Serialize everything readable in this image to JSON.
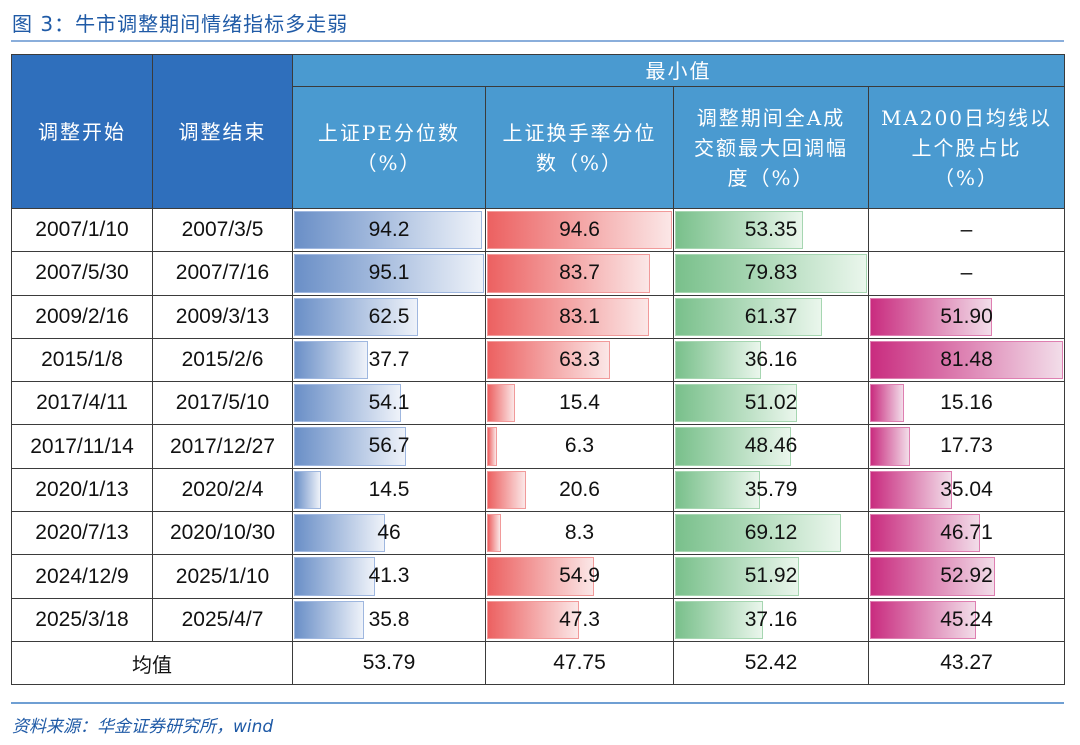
{
  "title": "图 3：牛市调整期间情绪指标多走弱",
  "source": "资料来源：华金证券研究所，wind",
  "header": {
    "group_label": "最小值",
    "col_start": "调整开始",
    "col_end": "调整结束",
    "col_pe_line1": "上证PE分位数",
    "col_pe_line2": "（%）",
    "col_turnover_line1": "上证换手率分位",
    "col_turnover_line2": "数（%）",
    "col_drawdown_line1": "调整期间全A成",
    "col_drawdown_line2": "交额最大回调幅",
    "col_drawdown_line3": "度（%）",
    "col_ma200_line1": "MA200日均线以",
    "col_ma200_line2": "上个股占比",
    "col_ma200_line3": "（%）"
  },
  "colors": {
    "header_dark": "#2f6fbc",
    "header_light": "#4a9ad0",
    "bar_pe": "#6a8fc7",
    "bar_turnover": "#ec6161",
    "bar_drawdown": "#79c08b",
    "bar_ma200": "#c92c7f",
    "title": "#1f5aa6"
  },
  "rows": [
    {
      "start": "2007/1/10",
      "end": "2007/3/5",
      "pe": "94.2",
      "turnover": "94.6",
      "drawdown": "53.35",
      "ma200": "–"
    },
    {
      "start": "2007/5/30",
      "end": "2007/7/16",
      "pe": "95.1",
      "turnover": "83.7",
      "drawdown": "79.83",
      "ma200": "–"
    },
    {
      "start": "2009/2/16",
      "end": "2009/3/13",
      "pe": "62.5",
      "turnover": "83.1",
      "drawdown": "61.37",
      "ma200": "51.90"
    },
    {
      "start": "2015/1/8",
      "end": "2015/2/6",
      "pe": "37.7",
      "turnover": "63.3",
      "drawdown": "36.16",
      "ma200": "81.48"
    },
    {
      "start": "2017/4/11",
      "end": "2017/5/10",
      "pe": "54.1",
      "turnover": "15.4",
      "drawdown": "51.02",
      "ma200": "15.16"
    },
    {
      "start": "2017/11/14",
      "end": "2017/12/27",
      "pe": "56.7",
      "turnover": "6.3",
      "drawdown": "48.46",
      "ma200": "17.73"
    },
    {
      "start": "2020/1/13",
      "end": "2020/2/4",
      "pe": "14.5",
      "turnover": "20.6",
      "drawdown": "35.79",
      "ma200": "35.04"
    },
    {
      "start": "2020/7/13",
      "end": "2020/10/30",
      "pe": "46",
      "turnover": "8.3",
      "drawdown": "69.12",
      "ma200": "46.71"
    },
    {
      "start": "2024/12/9",
      "end": "2025/1/10",
      "pe": "41.3",
      "turnover": "54.9",
      "drawdown": "51.92",
      "ma200": "52.92"
    },
    {
      "start": "2025/3/18",
      "end": "2025/4/7",
      "pe": "35.8",
      "turnover": "47.3",
      "drawdown": "37.16",
      "ma200": "45.24"
    }
  ],
  "average": {
    "label": "均值",
    "pe": "53.79",
    "turnover": "47.75",
    "drawdown": "52.42",
    "ma200": "43.27"
  },
  "chart_data": {
    "type": "table",
    "title": "图 3：牛市调整期间情绪指标多走弱",
    "group_header": "最小值",
    "columns": [
      "调整开始",
      "调整结束",
      "上证PE分位数（%）",
      "上证换手率分位数（%）",
      "调整期间全A成交额最大回调幅度（%）",
      "MA200日均线以上个股占比（%）"
    ],
    "categories": [
      "2007/1/10–2007/3/5",
      "2007/5/30–2007/7/16",
      "2009/2/16–2009/3/13",
      "2015/1/8–2015/2/6",
      "2017/4/11–2017/5/10",
      "2017/11/14–2017/12/27",
      "2020/1/13–2020/2/4",
      "2020/7/13–2020/10/30",
      "2024/12/9–2025/1/10",
      "2025/3/18–2025/4/7"
    ],
    "series": [
      {
        "name": "上证PE分位数（%）",
        "values": [
          94.2,
          95.1,
          62.5,
          37.7,
          54.1,
          56.7,
          14.5,
          46,
          41.3,
          35.8
        ],
        "mean": 53.79
      },
      {
        "name": "上证换手率分位数（%）",
        "values": [
          94.6,
          83.7,
          83.1,
          63.3,
          15.4,
          6.3,
          20.6,
          8.3,
          54.9,
          47.3
        ],
        "mean": 47.75
      },
      {
        "name": "调整期间全A成交额最大回调幅度（%）",
        "values": [
          53.35,
          79.83,
          61.37,
          36.16,
          51.02,
          48.46,
          35.79,
          69.12,
          51.92,
          37.16
        ],
        "mean": 52.42
      },
      {
        "name": "MA200日均线以上个股占比（%）",
        "values": [
          null,
          null,
          51.9,
          81.48,
          15.16,
          17.73,
          35.04,
          46.71,
          52.92,
          45.24
        ],
        "mean": 43.27
      }
    ],
    "notes": "Cells contain in-cell data bars scaled to each column's maximum."
  }
}
